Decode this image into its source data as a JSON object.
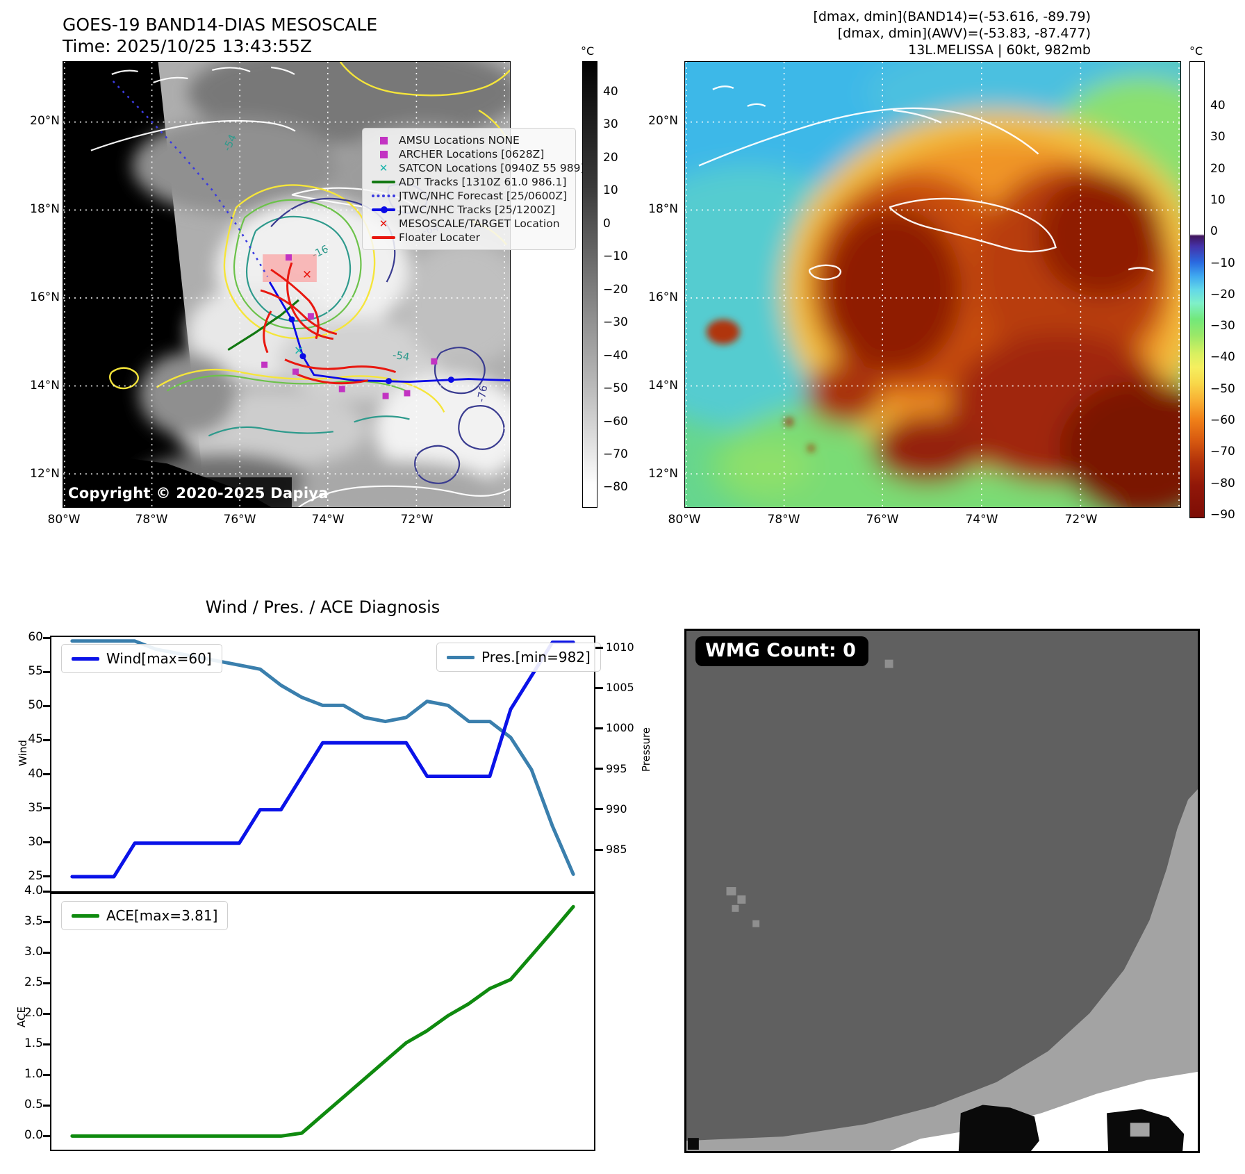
{
  "band14_panel": {
    "title": "GOES-19 BAND14-DIAS MESOSCALE",
    "time_line": "Time: 2025/10/25 13:43:55Z",
    "copyright": "Copyright © 2020-2025 Dapiya",
    "legend_items": [
      {
        "marker": "square",
        "color": "#c233c2",
        "label": "AMSU Locations NONE"
      },
      {
        "marker": "square",
        "color": "#c233c2",
        "label": "ARCHER Locations [0628Z]"
      },
      {
        "marker": "x",
        "color": "#1fb5ad",
        "label": "SATCON Locations [0940Z 55 989]"
      },
      {
        "marker": "line",
        "color": "#127812",
        "label": "ADT Tracks [1310Z 61.0 986.1]"
      },
      {
        "marker": "dotted",
        "color": "#3a3ae0",
        "label": "JTWC/NHC Forecast [25/0600Z]"
      },
      {
        "marker": "line-dot",
        "color": "#0a0ae6",
        "label": "JTWC/NHC Tracks [25/1200Z]"
      },
      {
        "marker": "x",
        "color": "#e81810",
        "label": "MESOSCALE/TARGET Location"
      },
      {
        "marker": "line",
        "color": "#e81810",
        "label": "Floater Locater"
      }
    ],
    "lat_labels": [
      "20°N",
      "18°N",
      "16°N",
      "14°N",
      "12°N"
    ],
    "lon_labels": [
      "80°W",
      "78°W",
      "76°W",
      "74°W",
      "72°W"
    ],
    "contour_labels": [
      "-16",
      "-54",
      "-54",
      "-64",
      "-76"
    ],
    "colorbar": {
      "unit": "°C",
      "ticks": [
        "40",
        "30",
        "20",
        "10",
        "0",
        "−10",
        "−20",
        "−30",
        "−40",
        "−50",
        "−60",
        "−70",
        "−80"
      ]
    }
  },
  "awv_panel": {
    "annotations": [
      "[dmax, dmin](BAND14)=(-53.616, -89.79)",
      "[dmax, dmin](AWV)=(-53.83, -87.477)",
      "13L.MELISSA | 60kt, 982mb"
    ],
    "lat_labels": [
      "20°N",
      "18°N",
      "16°N",
      "14°N",
      "12°N"
    ],
    "lon_labels": [
      "80°W",
      "78°W",
      "76°W",
      "74°W",
      "72°W"
    ],
    "colorbar": {
      "unit": "°C",
      "ticks": [
        "40",
        "30",
        "20",
        "10",
        "0",
        "−10",
        "−20",
        "−30",
        "−40",
        "−50",
        "−60",
        "−70",
        "−80",
        "−90"
      ]
    }
  },
  "diagnosis": {
    "title": "Wind / Pres. / ACE Diagnosis",
    "wind_legend": "Wind[max=60]",
    "pres_legend": "Pres.[min=982]",
    "ace_legend": "ACE[max=3.81]",
    "wind_ylabel": "Wind",
    "pres_ylabel": "Pressure",
    "ace_ylabel": "ACE",
    "wind_yticks": [
      "60",
      "55",
      "50",
      "45",
      "40",
      "35",
      "30",
      "25"
    ],
    "pres_yticks": [
      "1010",
      "1005",
      "1000",
      "995",
      "990",
      "985"
    ],
    "ace_yticks": [
      "4.0",
      "3.5",
      "3.0",
      "2.5",
      "2.0",
      "1.5",
      "1.0",
      "0.5",
      "0.0"
    ]
  },
  "chart_data": [
    {
      "type": "line",
      "title": "Wind / Pres. / ACE Diagnosis",
      "x": [
        0,
        1,
        2,
        3,
        4,
        5,
        6,
        7,
        8,
        9,
        10,
        11,
        12,
        13,
        14,
        15,
        16,
        17,
        18,
        19,
        20,
        21,
        22,
        23,
        24
      ],
      "x_note": "time index (no tick labels shown)",
      "series": [
        {
          "name": "Wind[max=60]",
          "axis": "left",
          "color": "#0a12e8",
          "values": [
            25,
            25,
            25,
            30,
            30,
            30,
            30,
            30,
            30,
            35,
            35,
            40,
            45,
            45,
            45,
            45,
            45,
            40,
            40,
            40,
            40,
            50,
            55,
            60,
            60
          ]
        },
        {
          "name": "Pres.[min=982]",
          "axis": "right",
          "color": "#3a7fad",
          "values": [
            1011,
            1011,
            1011,
            1011,
            1010,
            1009.5,
            1009,
            1008.5,
            1008,
            1007.5,
            1005.5,
            1004,
            1003,
            1003,
            1001.5,
            1001,
            1001.5,
            1003.5,
            1003,
            1001,
            1001,
            999,
            995,
            988,
            982
          ]
        }
      ],
      "ylabel_left": "Wind",
      "ylim_left": [
        22.6,
        60.8
      ],
      "yticks_left": [
        60,
        55,
        50,
        45,
        40,
        35,
        30,
        25
      ],
      "ylabel_right": "Pressure",
      "ylim_right": [
        979.7,
        1011.5
      ],
      "yticks_right": [
        1010,
        1005,
        1000,
        995,
        990,
        985
      ],
      "legend_positions": [
        "upper left",
        "upper right"
      ],
      "grid": false
    },
    {
      "type": "line",
      "x": [
        0,
        1,
        2,
        3,
        4,
        5,
        6,
        7,
        8,
        9,
        10,
        11,
        12,
        13,
        14,
        15,
        16,
        17,
        18,
        19,
        20,
        21,
        22,
        23,
        24
      ],
      "series": [
        {
          "name": "ACE[max=3.81]",
          "color": "#0f8a0f",
          "values": [
            0,
            0,
            0,
            0,
            0,
            0,
            0,
            0,
            0,
            0,
            0,
            0.05,
            0.35,
            0.65,
            0.95,
            1.25,
            1.55,
            1.75,
            2.0,
            2.2,
            2.45,
            2.6,
            3.0,
            3.4,
            3.81
          ]
        }
      ],
      "ylabel": "ACE",
      "ylim": [
        -0.25,
        4.02
      ],
      "yticks": [
        4.0,
        3.5,
        3.0,
        2.5,
        2.0,
        1.5,
        1.0,
        0.5,
        0.0
      ],
      "legend_positions": [
        "upper left"
      ],
      "grid": false
    }
  ],
  "wmg_panel": {
    "badge": "WMG Count: 0"
  }
}
